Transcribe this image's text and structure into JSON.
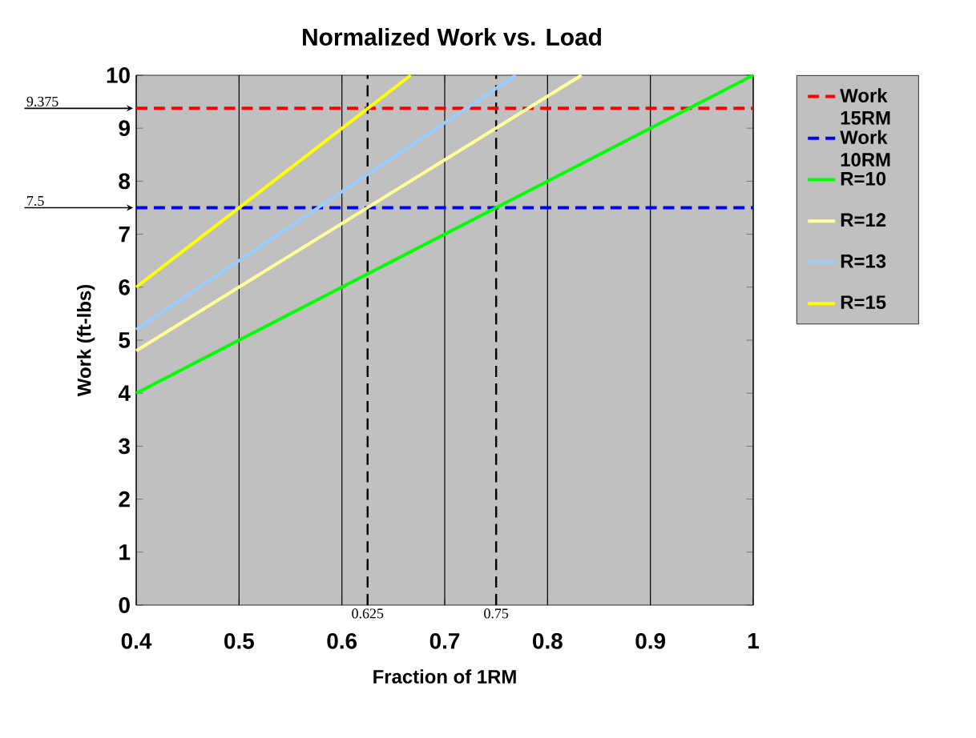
{
  "chart_data": {
    "type": "line",
    "title": "Normalized Work vs. Load",
    "xlabel": "Fraction of 1RM",
    "ylabel": "Work (ft-lbs)",
    "xlim": [
      0.4,
      1
    ],
    "ylim": [
      0,
      10
    ],
    "xticks": [
      0.4,
      0.5,
      0.6,
      0.7,
      0.8,
      0.9,
      1
    ],
    "yticks": [
      0,
      1,
      2,
      3,
      4,
      5,
      6,
      7,
      8,
      9,
      10
    ],
    "grid": "x",
    "legend": "right",
    "series": [
      {
        "name": "Work 15RM",
        "color": "#ff0000",
        "line_style": "dashed",
        "x": [
          0.4,
          1
        ],
        "values": [
          9.375,
          9.375
        ]
      },
      {
        "name": "Work 10RM",
        "color": "#0000ff",
        "line_style": "dashed",
        "x": [
          0.4,
          1
        ],
        "values": [
          7.5,
          7.5
        ]
      },
      {
        "name": "R=10",
        "color": "#00ff00",
        "x": [
          0.4,
          1
        ],
        "values": [
          4,
          10
        ]
      },
      {
        "name": "R=12",
        "color": "#ffff99",
        "x": [
          0.4,
          0.833
        ],
        "values": [
          4.8,
          10
        ]
      },
      {
        "name": "R=13",
        "color": "#99ccff",
        "x": [
          0.4,
          0.769
        ],
        "values": [
          5.2,
          10
        ]
      },
      {
        "name": "R=15",
        "color": "#ffff00",
        "x": [
          0.4,
          0.667
        ],
        "values": [
          6,
          10
        ]
      }
    ],
    "ref_lines": [
      {
        "axis": "x",
        "value": 0.625,
        "label": "0.625",
        "color": "#000000",
        "line_style": "dashed"
      },
      {
        "axis": "x",
        "value": 0.75,
        "label": "0.75",
        "color": "#000000",
        "line_style": "dashed"
      }
    ],
    "annotations": [
      "9.375",
      "7.5"
    ]
  }
}
